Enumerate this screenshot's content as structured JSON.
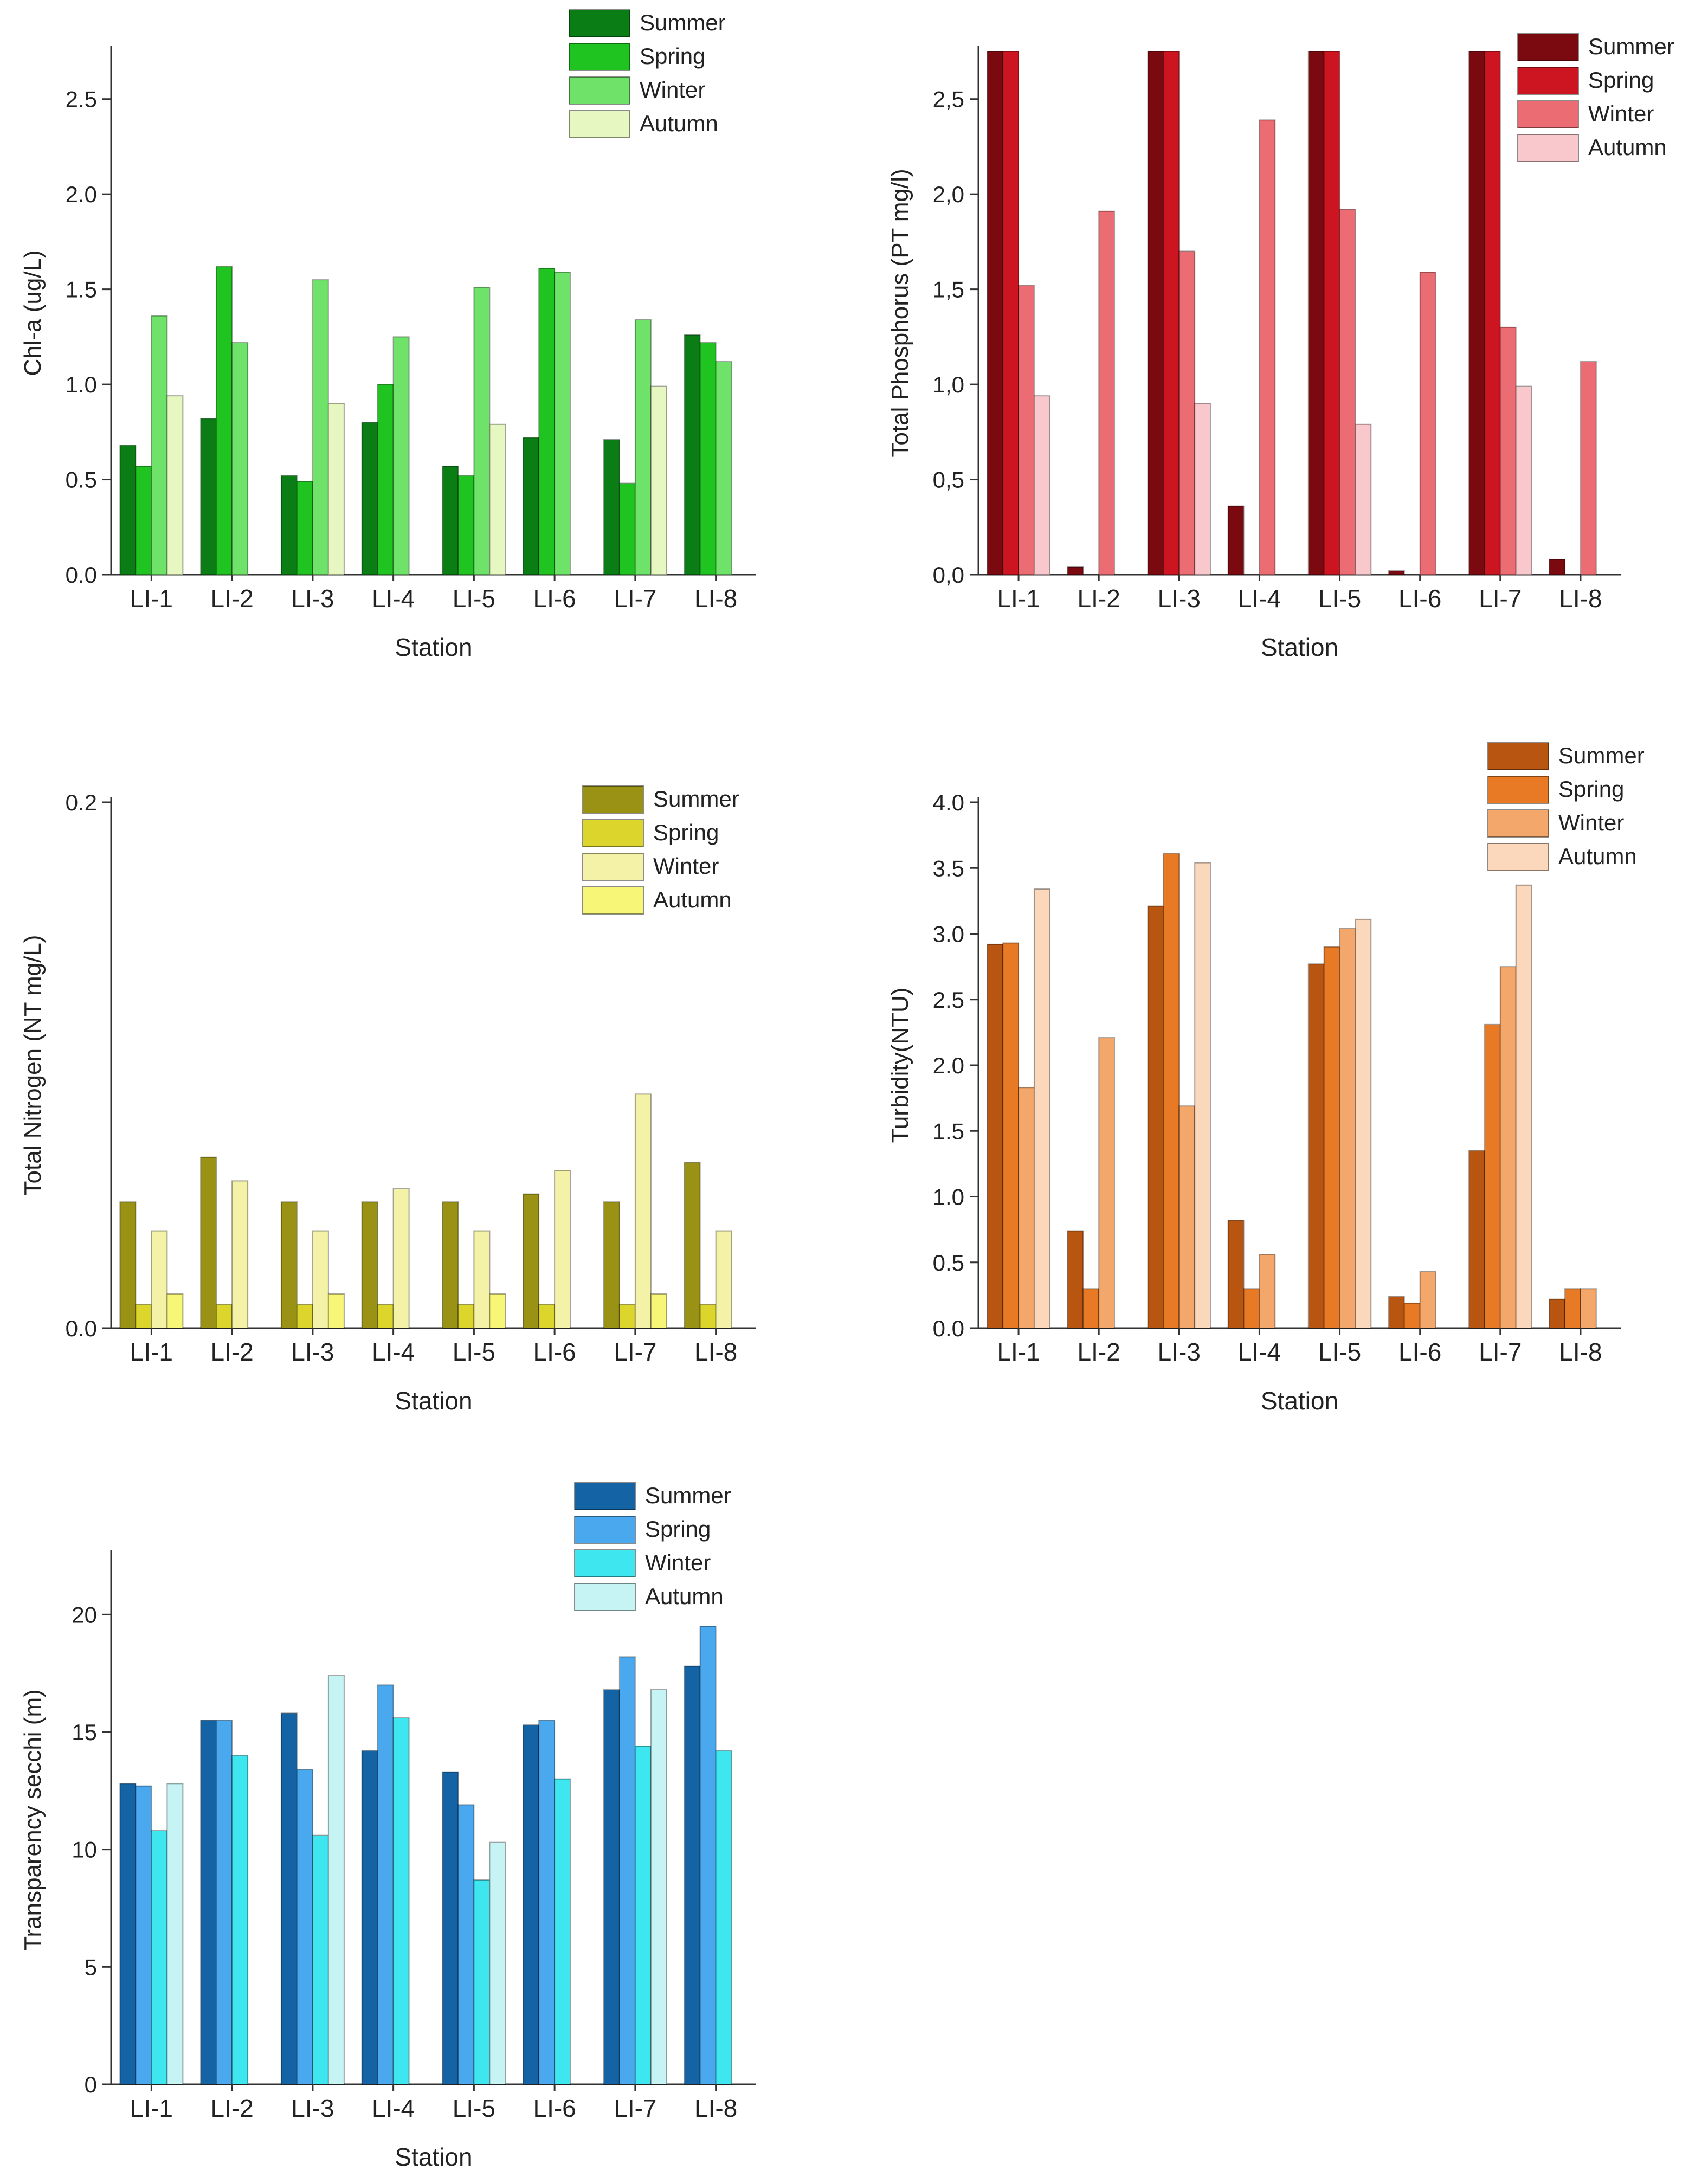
{
  "stations": [
    "LI-1",
    "LI-2",
    "LI-3",
    "LI-4",
    "LI-5",
    "LI-6",
    "LI-7",
    "LI-8"
  ],
  "seasons": [
    "Summer",
    "Spring",
    "Winter",
    "Autumn"
  ],
  "chart_data": [
    {
      "id": "chla",
      "type": "bar",
      "title": "",
      "xlabel": "Station",
      "ylabel": "Chl-a (ug/L)",
      "ylim": [
        0,
        2.75
      ],
      "yticks": [
        0,
        0.5,
        1.0,
        1.5,
        2.0,
        2.5
      ],
      "tick_labels": [
        "0.0",
        "0.5",
        "1.0",
        "1.5",
        "2.0",
        "2.5"
      ],
      "categories": [
        "LI-1",
        "LI-2",
        "LI-3",
        "LI-4",
        "LI-5",
        "LI-6",
        "LI-7",
        "LI-8"
      ],
      "colors": [
        "#0a7d15",
        "#20c421",
        "#6fe26a",
        "#e6f7c2"
      ],
      "legend_position": "top-right",
      "series": [
        {
          "name": "Summer",
          "values": [
            0.68,
            0.82,
            0.52,
            0.8,
            0.57,
            0.72,
            0.71,
            1.26
          ]
        },
        {
          "name": "Spring",
          "values": [
            0.57,
            1.62,
            0.49,
            1.0,
            0.52,
            1.61,
            0.48,
            1.22
          ]
        },
        {
          "name": "Winter",
          "values": [
            1.36,
            1.22,
            1.55,
            1.25,
            1.51,
            1.59,
            1.34,
            1.12
          ]
        },
        {
          "name": "Autumn",
          "values": [
            0.94,
            null,
            0.9,
            null,
            0.79,
            null,
            0.99,
            null
          ]
        }
      ]
    },
    {
      "id": "tp",
      "type": "bar",
      "title": "",
      "xlabel": "Station",
      "ylabel": "Total Phosphorus (PT mg/l)",
      "ylim": [
        0,
        2.75
      ],
      "yticks": [
        0,
        0.5,
        1.0,
        1.5,
        2.0,
        2.5
      ],
      "tick_labels": [
        "0,0",
        "0,5",
        "1,0",
        "1,5",
        "2,0",
        "2,5"
      ],
      "categories": [
        "LI-1",
        "LI-2",
        "LI-3",
        "LI-4",
        "LI-5",
        "LI-6",
        "LI-7",
        "LI-8"
      ],
      "colors": [
        "#7a0a10",
        "#cc1520",
        "#ec6c74",
        "#f8c8cc"
      ],
      "legend_position": "top-right",
      "series": [
        {
          "name": "Summer",
          "values": [
            2.75,
            0.04,
            2.75,
            0.36,
            2.75,
            0.02,
            2.75,
            0.08
          ]
        },
        {
          "name": "Spring",
          "values": [
            2.75,
            null,
            2.75,
            null,
            2.75,
            null,
            2.75,
            null
          ]
        },
        {
          "name": "Winter",
          "values": [
            1.52,
            1.91,
            1.7,
            2.39,
            1.92,
            1.59,
            1.3,
            1.12
          ]
        },
        {
          "name": "Autumn",
          "values": [
            0.94,
            null,
            0.9,
            null,
            0.79,
            null,
            0.99,
            null
          ]
        }
      ]
    },
    {
      "id": "tn",
      "type": "bar",
      "title": "",
      "xlabel": "Station",
      "ylabel": "Total Nitrogen (NT mg/L)",
      "ylim": [
        0,
        0.2
      ],
      "yticks": [
        0,
        0.2
      ],
      "tick_labels": [
        "0.0",
        "0.2"
      ],
      "categories": [
        "LI-1",
        "LI-2",
        "LI-3",
        "LI-4",
        "LI-5",
        "LI-6",
        "LI-7",
        "LI-8"
      ],
      "colors": [
        "#9a9214",
        "#dcd62c",
        "#f4f2a6",
        "#f8f676"
      ],
      "legend_position": "top-right",
      "series": [
        {
          "name": "Summer",
          "values": [
            0.048,
            0.065,
            0.048,
            0.048,
            0.048,
            0.051,
            0.048,
            0.063
          ]
        },
        {
          "name": "Spring",
          "values": [
            0.009,
            0.009,
            0.009,
            0.009,
            0.009,
            0.009,
            0.009,
            0.009
          ]
        },
        {
          "name": "Winter",
          "values": [
            0.037,
            0.056,
            0.037,
            0.053,
            0.037,
            0.06,
            0.089,
            0.037
          ]
        },
        {
          "name": "Autumn",
          "values": [
            0.013,
            null,
            0.013,
            null,
            0.013,
            null,
            0.013,
            null
          ]
        }
      ]
    },
    {
      "id": "turb",
      "type": "bar",
      "title": "",
      "xlabel": "Station",
      "ylabel": "Turbidity(NTU)",
      "ylim": [
        0,
        4.0
      ],
      "yticks": [
        0,
        0.5,
        1.0,
        1.5,
        2.0,
        2.5,
        3.0,
        3.5,
        4.0
      ],
      "tick_labels": [
        "0.0",
        "0.5",
        "1.0",
        "1.5",
        "2.0",
        "2.5",
        "3.0",
        "3.5",
        "4.0"
      ],
      "categories": [
        "LI-1",
        "LI-2",
        "LI-3",
        "LI-4",
        "LI-5",
        "LI-6",
        "LI-7",
        "LI-8"
      ],
      "colors": [
        "#b85510",
        "#e87a25",
        "#f4a76a",
        "#fbd7bb"
      ],
      "legend_position": "top-right",
      "series": [
        {
          "name": "Summer",
          "values": [
            2.92,
            0.74,
            3.21,
            0.82,
            2.77,
            0.24,
            1.35,
            0.22
          ]
        },
        {
          "name": "Spring",
          "values": [
            2.93,
            0.3,
            3.61,
            0.3,
            2.9,
            0.19,
            2.31,
            0.3
          ]
        },
        {
          "name": "Winter",
          "values": [
            1.83,
            2.21,
            1.69,
            0.56,
            3.04,
            0.43,
            2.75,
            0.3
          ]
        },
        {
          "name": "Autumn",
          "values": [
            3.34,
            null,
            3.54,
            null,
            3.11,
            null,
            3.37,
            null
          ]
        }
      ]
    },
    {
      "id": "secchi",
      "type": "bar",
      "title": "",
      "xlabel": "Station",
      "ylabel": "Transparency secchi (m)",
      "ylim": [
        0,
        22.5
      ],
      "yticks": [
        0,
        5,
        10,
        15,
        20
      ],
      "tick_labels": [
        "0",
        "5",
        "10",
        "15",
        "20"
      ],
      "categories": [
        "LI-1",
        "LI-2",
        "LI-3",
        "LI-4",
        "LI-5",
        "LI-6",
        "LI-7",
        "LI-8"
      ],
      "colors": [
        "#1463a4",
        "#4aa8ee",
        "#3ee6ef",
        "#c6f4f5"
      ],
      "legend_position": "top-right",
      "series": [
        {
          "name": "Summer",
          "values": [
            12.8,
            15.5,
            15.8,
            14.2,
            13.3,
            15.3,
            16.8,
            17.8
          ]
        },
        {
          "name": "Spring",
          "values": [
            12.7,
            15.5,
            13.4,
            17.0,
            11.9,
            15.5,
            18.2,
            19.5
          ]
        },
        {
          "name": "Winter",
          "values": [
            10.8,
            14.0,
            10.6,
            15.6,
            8.7,
            13.0,
            14.4,
            14.2
          ]
        },
        {
          "name": "Autumn",
          "values": [
            12.8,
            null,
            17.4,
            null,
            10.3,
            null,
            16.8,
            null
          ]
        }
      ]
    }
  ]
}
